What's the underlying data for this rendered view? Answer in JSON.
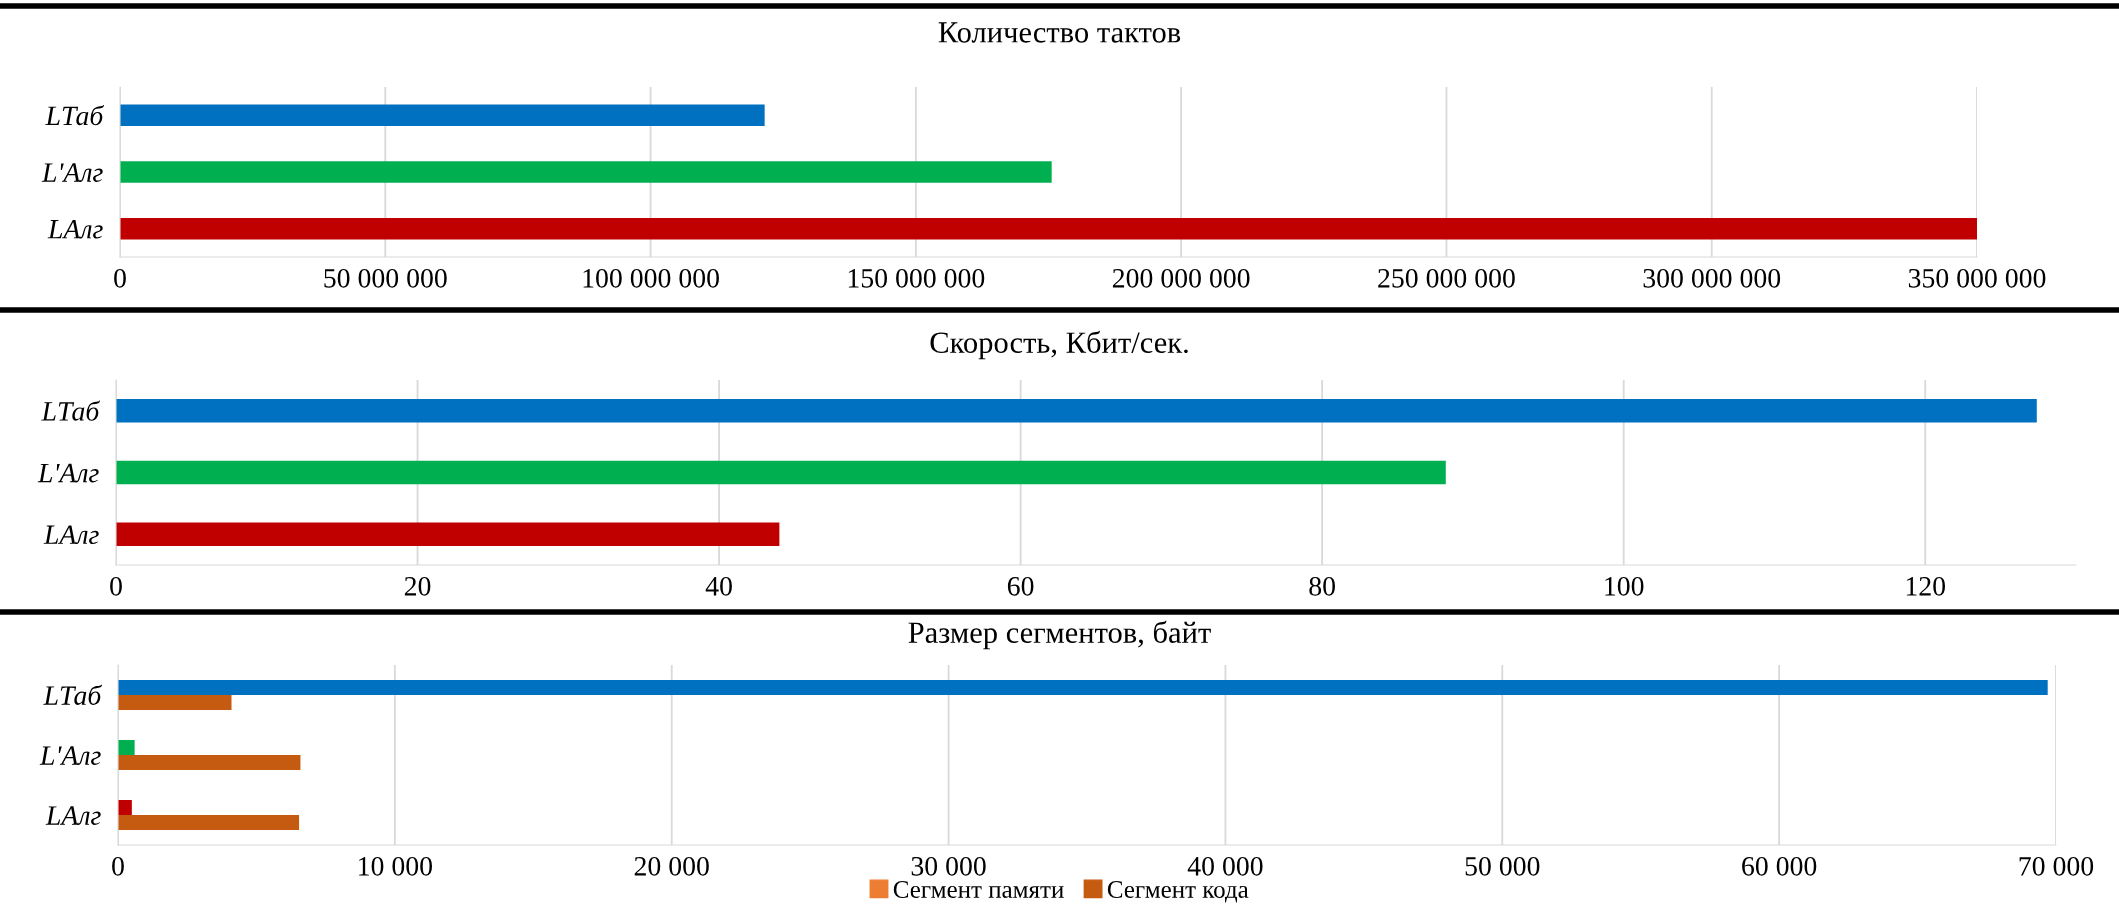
{
  "chart_data": [
    {
      "type": "bar",
      "orientation": "horizontal",
      "title": "Количество тактов",
      "categories": [
        "LТаб",
        "L'Алг",
        "LАлг"
      ],
      "values": [
        121500000,
        175600000,
        350000000
      ],
      "colors": [
        "#0070c0",
        "#00b050",
        "#c00000"
      ],
      "xlim": [
        0,
        350000000
      ],
      "xticks": [
        0,
        {
          "value": 50000000,
          "label": "50 000 000"
        },
        {
          "value": 100000000,
          "label": "100 000 000"
        },
        {
          "value": 150000000,
          "label": "150 000 000"
        },
        {
          "value": 200000000,
          "label": "200 000 000"
        },
        {
          "value": 250000000,
          "label": "250 000 000"
        },
        {
          "value": 300000000,
          "label": "300 000 000"
        },
        {
          "value": 350000000,
          "label": "350 000 000"
        }
      ],
      "grid": "x",
      "legend": false
    },
    {
      "type": "bar",
      "orientation": "horizontal",
      "title": "Скорость, Кбит/сек.",
      "categories": [
        "LТаб",
        "L'Алг",
        "LАлг"
      ],
      "values": [
        127.4,
        88.2,
        44.0
      ],
      "colors": [
        "#0070c0",
        "#00b050",
        "#c00000"
      ],
      "xlim": [
        0,
        130
      ],
      "xticks": [
        0,
        20,
        40,
        60,
        80,
        100,
        120
      ],
      "grid": "x",
      "legend": false
    },
    {
      "type": "bar",
      "orientation": "horizontal",
      "title": "Размер сегментов, байт",
      "categories": [
        "LТаб",
        "L'Алг",
        "LАлг"
      ],
      "series": [
        {
          "name": "Сегмент памяти",
          "color": "#ed7d31",
          "colors": [
            "#0070c0",
            "#00b050",
            "#c00000"
          ],
          "values": [
            69700,
            600,
            500
          ]
        },
        {
          "name": "Сегмент кода",
          "color": "#c55a11",
          "values": [
            4100,
            6590,
            6540
          ]
        }
      ],
      "xlim": [
        0,
        70000
      ],
      "xticks": [
        0,
        {
          "value": 10000,
          "label": "10 000"
        },
        {
          "value": 20000,
          "label": "20 000"
        },
        {
          "value": 30000,
          "label": "30 000"
        },
        {
          "value": 40000,
          "label": "40 000"
        },
        {
          "value": 50000,
          "label": "50 000"
        },
        {
          "value": 60000,
          "label": "60 000"
        },
        {
          "value": 70000,
          "label": "70 000"
        }
      ],
      "grid": "x",
      "legend": "bottom"
    }
  ]
}
